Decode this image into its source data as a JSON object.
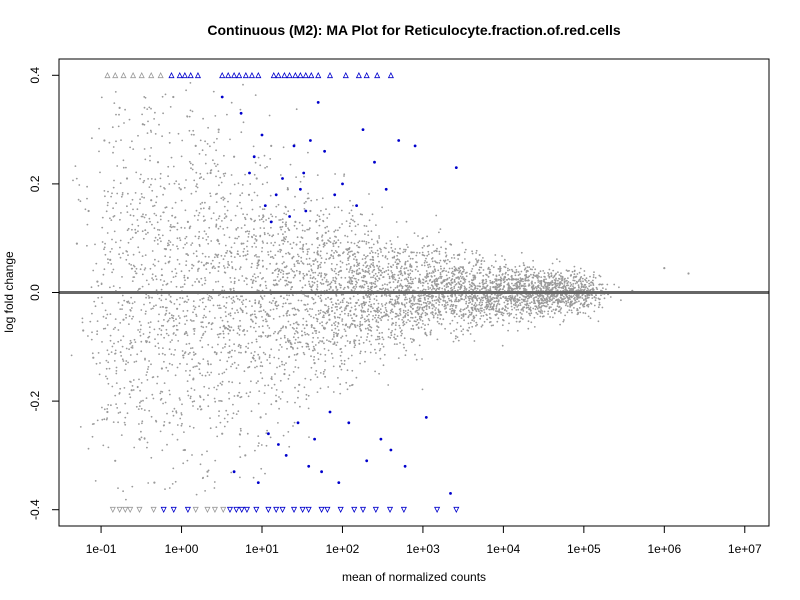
{
  "chart_data": {
    "type": "scatter",
    "title": "Continuous (M2): MA Plot for Reticulocyte.fraction.of.red.cells",
    "xlabel": "mean of normalized counts",
    "ylabel": "log fold change",
    "x_scale": "log10",
    "xlim": [
      0.03,
      20000000
    ],
    "ylim": [
      -0.43,
      0.43
    ],
    "x_ticks": [
      {
        "value": 0.1,
        "label": "1e-01"
      },
      {
        "value": 1,
        "label": "1e+00"
      },
      {
        "value": 10,
        "label": "1e+01"
      },
      {
        "value": 100,
        "label": "1e+02"
      },
      {
        "value": 1000,
        "label": "1e+03"
      },
      {
        "value": 10000,
        "label": "1e+04"
      },
      {
        "value": 100000,
        "label": "1e+05"
      },
      {
        "value": 1000000,
        "label": "1e+06"
      },
      {
        "value": 10000000,
        "label": "1e+07"
      }
    ],
    "y_ticks": [
      {
        "value": -0.4,
        "label": "-0.4"
      },
      {
        "value": -0.2,
        "label": "-0.2"
      },
      {
        "value": 0.0,
        "label": "0.0"
      },
      {
        "value": 0.2,
        "label": "0.2"
      },
      {
        "value": 0.4,
        "label": "0.4"
      }
    ],
    "reference_line": {
      "y": 0,
      "color": "#666666"
    },
    "grid": false,
    "colors": {
      "non_significant": "#9a9a9a",
      "significant": "#0000cc",
      "out_of_range_non_significant": "#9a9a9a",
      "out_of_range_significant": "#0000cc"
    },
    "series": [
      {
        "role": "non-significant genes (cloud, approximate)",
        "values": [
          [
            0.05,
            0.09
          ],
          [
            0.06,
            -0.07
          ],
          [
            0.07,
            0.15
          ],
          [
            0.08,
            -0.12
          ],
          [
            0.09,
            0.02
          ],
          [
            0.11,
            0.28
          ],
          [
            0.12,
            -0.22
          ],
          [
            0.13,
            0.06
          ],
          [
            0.15,
            -0.31
          ],
          [
            0.17,
            0.34
          ],
          [
            0.19,
            -0.05
          ],
          [
            0.21,
            0.21
          ],
          [
            0.24,
            -0.18
          ],
          [
            0.27,
            0.11
          ],
          [
            0.3,
            -0.27
          ],
          [
            0.33,
            0.31
          ],
          [
            0.37,
            -0.09
          ],
          [
            0.42,
            0.17
          ],
          [
            0.46,
            -0.35
          ],
          [
            0.51,
            0.24
          ],
          [
            0.57,
            -0.14
          ],
          [
            0.64,
            0.08
          ],
          [
            0.71,
            -0.24
          ],
          [
            0.79,
            0.36
          ],
          [
            0.88,
            -0.03
          ],
          [
            0.98,
            0.19
          ],
          [
            1.1,
            -0.29
          ],
          [
            1.2,
            0.13
          ],
          [
            1.4,
            -0.16
          ],
          [
            1.5,
            0.27
          ],
          [
            1.7,
            -0.21
          ],
          [
            1.9,
            0.05
          ],
          [
            2.1,
            -0.33
          ],
          [
            2.3,
            0.22
          ],
          [
            2.6,
            -0.11
          ],
          [
            2.9,
            0.3
          ],
          [
            3.2,
            -0.26
          ],
          [
            3.6,
            0.14
          ],
          [
            4.0,
            -0.07
          ],
          [
            4.5,
            0.25
          ],
          [
            5.0,
            -0.19
          ],
          [
            5.6,
            0.09
          ],
          [
            6.2,
            -0.3
          ],
          [
            6.9,
            0.18
          ],
          [
            7.7,
            -0.12
          ],
          [
            8.6,
            0.21
          ],
          [
            9.6,
            -0.23
          ],
          [
            11,
            0.16
          ],
          [
            12,
            -0.08
          ],
          [
            13,
            0.27
          ],
          [
            15,
            -0.2
          ],
          [
            17,
            0.12
          ],
          [
            19,
            -0.15
          ],
          [
            21,
            0.19
          ],
          [
            23,
            -0.1
          ],
          [
            26,
            0.13
          ],
          [
            29,
            -0.17
          ],
          [
            32,
            0.08
          ],
          [
            36,
            -0.06
          ],
          [
            40,
            0.15
          ],
          [
            45,
            -0.13
          ],
          [
            50,
            0.07
          ],
          [
            56,
            -0.09
          ],
          [
            62,
            0.11
          ],
          [
            69,
            -0.05
          ],
          [
            77,
            0.09
          ],
          [
            86,
            -0.08
          ],
          [
            96,
            0.04
          ],
          [
            110,
            -0.06
          ],
          [
            120,
            0.08
          ],
          [
            140,
            -0.04
          ],
          [
            150,
            0.06
          ],
          [
            170,
            -0.07
          ],
          [
            190,
            0.03
          ],
          [
            210,
            -0.05
          ],
          [
            240,
            0.05
          ],
          [
            270,
            -0.03
          ],
          [
            300,
            0.04
          ],
          [
            350,
            -0.04
          ],
          [
            420,
            0.03
          ],
          [
            500,
            -0.02
          ],
          [
            600,
            0.035
          ],
          [
            750,
            -0.03
          ],
          [
            900,
            0.02
          ],
          [
            1100,
            -0.025
          ],
          [
            1400,
            0.02
          ],
          [
            1800,
            -0.015
          ],
          [
            2300,
            0.018
          ],
          [
            3000,
            -0.012
          ],
          [
            4000,
            0.012
          ],
          [
            5500,
            -0.01
          ],
          [
            7500,
            0.01
          ],
          [
            10000,
            -0.008
          ],
          [
            15000,
            0.009
          ],
          [
            22000,
            -0.006
          ],
          [
            35000,
            0.007
          ],
          [
            60000,
            -0.004
          ],
          [
            100000,
            0.004
          ],
          [
            200000,
            -0.003
          ],
          [
            400000,
            0.003
          ],
          [
            1000000,
            0.045
          ],
          [
            2000000,
            0.035
          ]
        ]
      },
      {
        "role": "significant genes (blue, approximate)",
        "values": [
          [
            3.2,
            0.36
          ],
          [
            4.5,
            -0.33
          ],
          [
            5.5,
            0.33
          ],
          [
            7.0,
            0.22
          ],
          [
            8.0,
            0.25
          ],
          [
            9.0,
            -0.35
          ],
          [
            10,
            0.29
          ],
          [
            11,
            0.16
          ],
          [
            12,
            -0.26
          ],
          [
            13,
            0.13
          ],
          [
            15,
            0.18
          ],
          [
            16,
            -0.28
          ],
          [
            18,
            0.21
          ],
          [
            20,
            -0.3
          ],
          [
            22,
            0.14
          ],
          [
            25,
            0.27
          ],
          [
            28,
            -0.24
          ],
          [
            30,
            0.19
          ],
          [
            33,
            0.22
          ],
          [
            35,
            0.15
          ],
          [
            38,
            -0.32
          ],
          [
            40,
            0.28
          ],
          [
            45,
            -0.27
          ],
          [
            50,
            0.35
          ],
          [
            55,
            -0.33
          ],
          [
            60,
            0.26
          ],
          [
            70,
            -0.22
          ],
          [
            80,
            0.18
          ],
          [
            90,
            -0.35
          ],
          [
            100,
            0.2
          ],
          [
            120,
            -0.24
          ],
          [
            150,
            0.16
          ],
          [
            180,
            0.3
          ],
          [
            200,
            -0.31
          ],
          [
            250,
            0.24
          ],
          [
            300,
            -0.27
          ],
          [
            350,
            0.19
          ],
          [
            400,
            -0.29
          ],
          [
            500,
            0.28
          ],
          [
            600,
            -0.32
          ],
          [
            800,
            0.27
          ],
          [
            1100,
            -0.23
          ],
          [
            2600,
            0.23
          ],
          [
            2200,
            -0.37
          ]
        ]
      },
      {
        "role": "out-of-range genes plotted at ylim (triangles, approximate)",
        "values": [
          [
            0.12,
            0.4,
            "ns"
          ],
          [
            0.15,
            0.4,
            "ns"
          ],
          [
            0.19,
            0.4,
            "ns"
          ],
          [
            0.25,
            0.4,
            "ns"
          ],
          [
            0.32,
            0.4,
            "ns"
          ],
          [
            0.42,
            0.4,
            "ns"
          ],
          [
            0.55,
            0.4,
            "ns"
          ],
          [
            0.75,
            0.4,
            "sig"
          ],
          [
            0.95,
            0.4,
            "sig"
          ],
          [
            1.1,
            0.4,
            "sig"
          ],
          [
            1.3,
            0.4,
            "sig"
          ],
          [
            1.6,
            0.4,
            "sig"
          ],
          [
            3.2,
            0.4,
            "sig"
          ],
          [
            3.8,
            0.4,
            "sig"
          ],
          [
            4.5,
            0.4,
            "sig"
          ],
          [
            5.2,
            0.4,
            "sig"
          ],
          [
            6.3,
            0.4,
            "sig"
          ],
          [
            7.5,
            0.4,
            "sig"
          ],
          [
            9.0,
            0.4,
            "sig"
          ],
          [
            14,
            0.4,
            "sig"
          ],
          [
            16,
            0.4,
            "sig"
          ],
          [
            19,
            0.4,
            "sig"
          ],
          [
            22,
            0.4,
            "sig"
          ],
          [
            26,
            0.4,
            "sig"
          ],
          [
            30,
            0.4,
            "sig"
          ],
          [
            35,
            0.4,
            "sig"
          ],
          [
            41,
            0.4,
            "sig"
          ],
          [
            50,
            0.4,
            "sig"
          ],
          [
            70,
            0.4,
            "sig"
          ],
          [
            110,
            0.4,
            "sig"
          ],
          [
            160,
            0.4,
            "sig"
          ],
          [
            200,
            0.4,
            "sig"
          ],
          [
            270,
            0.4,
            "sig"
          ],
          [
            400,
            0.4,
            "sig"
          ],
          [
            0.14,
            -0.4,
            "ns"
          ],
          [
            0.17,
            -0.4,
            "ns"
          ],
          [
            0.2,
            -0.4,
            "ns"
          ],
          [
            0.23,
            -0.4,
            "ns"
          ],
          [
            0.3,
            -0.4,
            "ns"
          ],
          [
            0.45,
            -0.4,
            "ns"
          ],
          [
            0.6,
            -0.4,
            "sig"
          ],
          [
            0.8,
            -0.4,
            "sig"
          ],
          [
            1.2,
            -0.4,
            "sig"
          ],
          [
            1.5,
            -0.4,
            "ns"
          ],
          [
            2.1,
            -0.4,
            "ns"
          ],
          [
            2.6,
            -0.4,
            "ns"
          ],
          [
            3.3,
            -0.4,
            "ns"
          ],
          [
            4.0,
            -0.4,
            "sig"
          ],
          [
            4.8,
            -0.4,
            "sig"
          ],
          [
            5.6,
            -0.4,
            "sig"
          ],
          [
            6.5,
            -0.4,
            "sig"
          ],
          [
            8.5,
            -0.4,
            "sig"
          ],
          [
            12,
            -0.4,
            "sig"
          ],
          [
            15,
            -0.4,
            "sig"
          ],
          [
            18,
            -0.4,
            "sig"
          ],
          [
            25,
            -0.4,
            "sig"
          ],
          [
            32,
            -0.4,
            "sig"
          ],
          [
            38,
            -0.4,
            "sig"
          ],
          [
            55,
            -0.4,
            "sig"
          ],
          [
            65,
            -0.4,
            "sig"
          ],
          [
            95,
            -0.4,
            "sig"
          ],
          [
            140,
            -0.4,
            "sig"
          ],
          [
            180,
            -0.4,
            "sig"
          ],
          [
            260,
            -0.4,
            "sig"
          ],
          [
            390,
            -0.4,
            "sig"
          ],
          [
            580,
            -0.4,
            "sig"
          ],
          [
            1500,
            -0.4,
            "sig"
          ],
          [
            2600,
            -0.4,
            "sig"
          ]
        ]
      }
    ]
  }
}
